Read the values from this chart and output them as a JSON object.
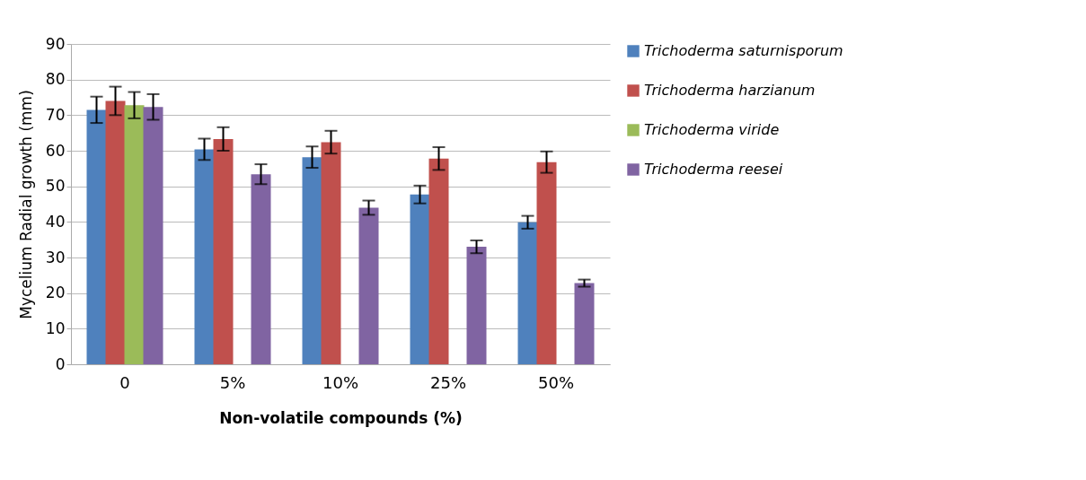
{
  "chart_data": {
    "type": "bar",
    "xlabel": "Non-volatile compounds  (%)",
    "ylabel": "Mycelium Radial growth (mm)",
    "categories": [
      "0",
      "5%",
      "10%",
      "25%",
      "50%"
    ],
    "series": [
      {
        "name": "Trichoderma saturnisporum",
        "color": "#4f81bd",
        "values": [
          71.5,
          60.4,
          58.2,
          47.7,
          39.9
        ],
        "errors": [
          3.7,
          3,
          3,
          2.5,
          1.8
        ]
      },
      {
        "name": "Trichoderma harzianum",
        "color": "#c0504d",
        "values": [
          74,
          63.3,
          62.4,
          57.8,
          56.8
        ],
        "errors": [
          4,
          3.3,
          3.2,
          3.2,
          3
        ]
      },
      {
        "name": "Trichoderma viride",
        "color": "#9bbb59",
        "values": [
          72.8,
          null,
          null,
          null,
          null
        ],
        "errors": [
          3.7,
          null,
          null,
          null,
          null
        ]
      },
      {
        "name": "Trichoderma reesei",
        "color": "#8064a2",
        "values": [
          72.3,
          53.4,
          44,
          33,
          22.8
        ],
        "errors": [
          3.6,
          2.8,
          2,
          1.8,
          1
        ]
      }
    ],
    "ylim": [
      0,
      90
    ],
    "yticks": [
      0,
      10,
      20,
      30,
      40,
      50,
      60,
      70,
      80,
      90
    ],
    "grid": "y",
    "legend": "right"
  }
}
